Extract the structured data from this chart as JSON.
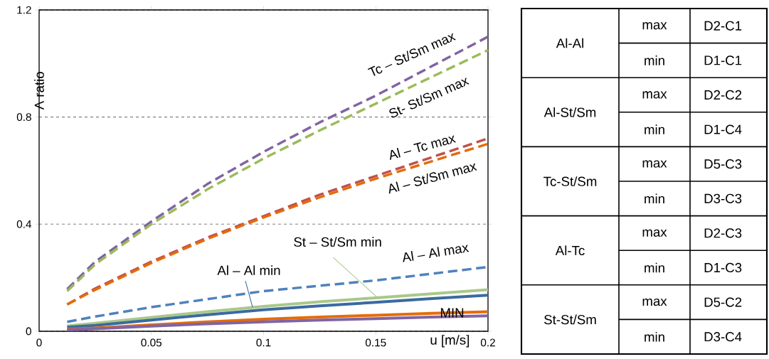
{
  "chart_data": [
    {
      "type": "line",
      "xlabel": "u [m/s]",
      "ylabel": "Λ ratio",
      "x": [
        0.0125,
        0.025,
        0.05,
        0.075,
        0.1,
        0.125,
        0.15,
        0.175,
        0.2
      ],
      "series": [
        {
          "name": "Tc – St/Sm max",
          "color": "#8064a2",
          "line_style": "dashed",
          "values": [
            0.157,
            0.26,
            0.41,
            0.55,
            0.67,
            0.78,
            0.88,
            0.99,
            1.1
          ]
        },
        {
          "name": "St- St/Sm max",
          "color": "#9bbb59",
          "line_style": "dashed",
          "values": [
            0.15,
            0.25,
            0.4,
            0.53,
            0.645,
            0.75,
            0.85,
            0.95,
            1.05
          ]
        },
        {
          "name": "Al – Tc max",
          "color": "#c0504d",
          "line_style": "dashed",
          "values": [
            0.1,
            0.16,
            0.26,
            0.35,
            0.43,
            0.51,
            0.58,
            0.65,
            0.72
          ]
        },
        {
          "name": "Al – St/Sm max",
          "color": "#e46c0a",
          "line_style": "dashed",
          "values": [
            0.1,
            0.155,
            0.255,
            0.345,
            0.425,
            0.5,
            0.57,
            0.635,
            0.7
          ]
        },
        {
          "name": "Al – Al max",
          "color": "#4f81bd",
          "line_style": "dashed",
          "values": [
            0.035,
            0.055,
            0.09,
            0.12,
            0.15,
            0.17,
            0.19,
            0.215,
            0.24
          ]
        },
        {
          "name": "St – St/Sm min",
          "color": "#a9c88a",
          "line_style": "solid",
          "values": [
            0.02,
            0.03,
            0.052,
            0.073,
            0.093,
            0.11,
            0.125,
            0.14,
            0.155
          ]
        },
        {
          "name": "Al – Al min",
          "color": "#3b6aa0",
          "line_style": "solid",
          "values": [
            0.015,
            0.022,
            0.042,
            0.062,
            0.08,
            0.095,
            0.108,
            0.122,
            0.135
          ]
        },
        {
          "color": "#e46c0a",
          "line_style": "solid",
          "values": [
            0.008,
            0.012,
            0.024,
            0.035,
            0.045,
            0.053,
            0.06,
            0.067,
            0.073
          ]
        },
        {
          "color": "#8064a2",
          "line_style": "solid",
          "values": [
            0.005,
            0.009,
            0.019,
            0.028,
            0.035,
            0.042,
            0.047,
            0.053,
            0.058
          ]
        }
      ],
      "annotations": [
        {
          "text": "MIN",
          "x": 0.184,
          "y": 0.069
        }
      ],
      "xlim": [
        0,
        0.2
      ],
      "ylim": [
        0,
        1.2
      ],
      "xticks": [
        0,
        0.05,
        0.1,
        0.15,
        0.2
      ],
      "yticks": [
        0,
        0.4,
        0.8,
        1.2
      ],
      "grid": "y"
    },
    {
      "type": "other",
      "annotations": [
        "Al-Al",
        "max",
        "D2-C1",
        "min",
        "D1-C1",
        "Al-St/Sm",
        "max",
        "D2-C2",
        "min",
        "D1-C4",
        "Tc-St/Sm",
        "max",
        "D5-C3",
        "min",
        "D3-C3",
        "Al-Tc",
        "max",
        "D2-C3",
        "min",
        "D1-C3",
        "St-St/Sm",
        "max",
        "D5-C2",
        "min",
        "D3-C4"
      ]
    }
  ]
}
